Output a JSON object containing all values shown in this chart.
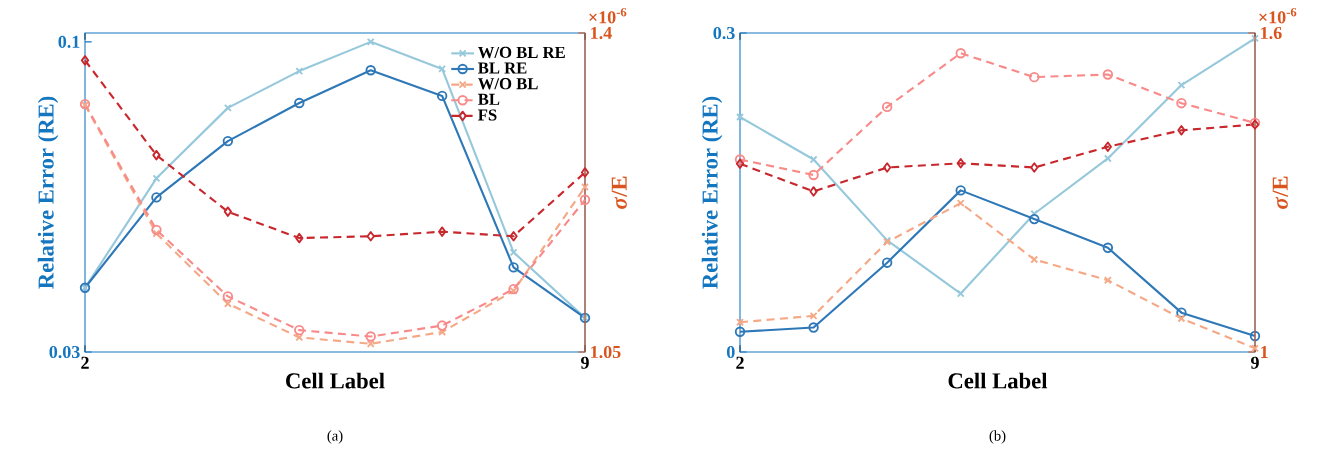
{
  "chart_data": [
    {
      "type": "line",
      "xlabel": "Cell Label",
      "ylabel": "Relative Error (RE)",
      "y2label": "*σ*/E",
      "annotations": [
        "×10$^{-6}$",
        "(a)"
      ],
      "x": [
        2,
        3,
        4,
        5,
        6,
        7,
        8,
        9
      ],
      "xlim": [
        2,
        9
      ],
      "xticks": [
        2,
        9
      ],
      "ylim": [
        0.03,
        0.102
      ],
      "yticks": [
        0.03,
        0.1
      ],
      "y2lim": [
        1.05,
        1.4
      ],
      "y2ticks": [
        1.05,
        1.4
      ],
      "legend": "top right",
      "grid": false,
      "series": [
        {
          "name": "W/O BL RE",
          "color": "#96c8dc",
          "marker": "cross",
          "line_style": "solid",
          "values": [
            0.0445,
            0.0692,
            0.0851,
            0.0934,
            0.1,
            0.0939,
            0.0525,
            0.0377
          ]
        },
        {
          "name": "BL RE",
          "color": "#2e78b7",
          "marker": "circle",
          "line_style": "solid",
          "values": [
            0.0445,
            0.0649,
            0.0776,
            0.0862,
            0.0936,
            0.0878,
            0.0491,
            0.0377
          ]
        },
        {
          "name": "W/O BL",
          "color": "#f5a886",
          "marker": "cross",
          "line_style": "dashed",
          "axis": "y2",
          "values": [
            1.321,
            1.18,
            1.103,
            1.066,
            1.059,
            1.072,
            1.117,
            1.231
          ]
        },
        {
          "name": "BL",
          "color": "#f88a8a",
          "marker": "circle",
          "line_style": "dashed",
          "axis": "y2",
          "values": [
            1.322,
            1.184,
            1.111,
            1.074,
            1.067,
            1.079,
            1.119,
            1.217
          ]
        },
        {
          "name": "FS",
          "color": "#c8282d",
          "marker": "diamond",
          "line_style": "dashed",
          "axis": "y2",
          "values": [
            1.37,
            1.266,
            1.204,
            1.175,
            1.177,
            1.182,
            1.177,
            1.247
          ]
        }
      ]
    },
    {
      "type": "line",
      "xlabel": "Cell Label",
      "ylabel": "Relative Error (RE)",
      "y2label": "*σ*/E",
      "annotations": [
        "×10$^{-6}$",
        "(b)"
      ],
      "x": [
        2,
        3,
        4,
        5,
        6,
        7,
        8,
        9
      ],
      "xlim": [
        2,
        9
      ],
      "xticks": [
        2,
        9
      ],
      "ylim": [
        0,
        0.3
      ],
      "yticks": [
        0,
        0.3
      ],
      "y2lim": [
        1,
        1.6
      ],
      "y2ticks": [
        1,
        1.6
      ],
      "grid": false,
      "series": [
        {
          "color": "#96c8dc",
          "marker": "cross",
          "line_style": "solid",
          "values": [
            0.221,
            0.181,
            0.105,
            0.055,
            0.13,
            0.182,
            0.251,
            0.295
          ]
        },
        {
          "color": "#2e78b7",
          "marker": "circle",
          "line_style": "solid",
          "values": [
            0.019,
            0.023,
            0.084,
            0.152,
            0.125,
            0.098,
            0.037,
            0.015
          ]
        },
        {
          "color": "#f5a886",
          "marker": "cross",
          "line_style": "dashed",
          "axis": "y2",
          "values": [
            1.056,
            1.068,
            1.207,
            1.28,
            1.174,
            1.135,
            1.063,
            1.007
          ]
        },
        {
          "color": "#f88a8a",
          "marker": "circle",
          "line_style": "dashed",
          "axis": "y2",
          "values": [
            1.362,
            1.333,
            1.461,
            1.562,
            1.517,
            1.522,
            1.468,
            1.431
          ]
        },
        {
          "color": "#c8282d",
          "marker": "diamond",
          "line_style": "dashed",
          "axis": "y2",
          "values": [
            1.354,
            1.302,
            1.347,
            1.355,
            1.347,
            1.386,
            1.417,
            1.428
          ]
        }
      ]
    }
  ]
}
